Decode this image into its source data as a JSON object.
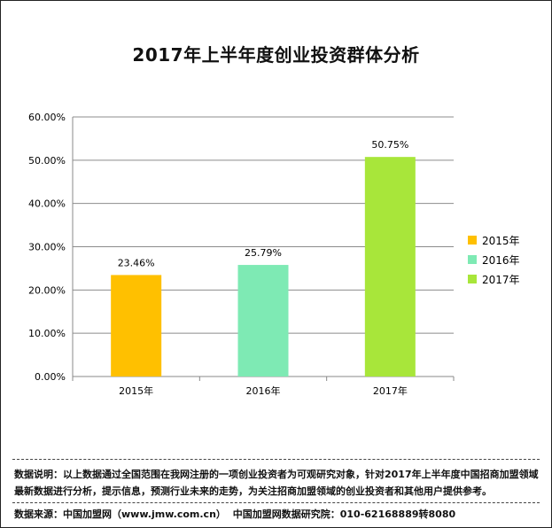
{
  "chart_data": {
    "type": "bar",
    "title": "2017年上半年度创业投资群体分析",
    "categories": [
      "2015年",
      "2016年",
      "2017年"
    ],
    "values": [
      23.46,
      25.79,
      50.75
    ],
    "value_labels": [
      "23.46%",
      "25.79%",
      "50.75%"
    ],
    "colors": [
      "#FFC000",
      "#7EEAB4",
      "#A8E63A"
    ],
    "ylim": [
      0,
      60
    ],
    "yticks": [
      0,
      10,
      20,
      30,
      40,
      50,
      60
    ],
    "ytick_labels": [
      "0.00%",
      "10.00%",
      "20.00%",
      "30.00%",
      "40.00%",
      "50.00%",
      "60.00%"
    ],
    "grid": true,
    "legend_position": "right",
    "legend": [
      "2015年",
      "2016年",
      "2017年"
    ]
  },
  "footer": {
    "note_line1": "数据说明：以上数据通过全国范围在我网注册的一项创业投资者为可观研究对象，针对2017年上半年度中国招商加盟领域",
    "note_line2": "最新数据进行分析，提示信息，预测行业未来的走势，为关注招商加盟领域的创业投资者和其他用户提供参考。",
    "source_label": "数据来源：中国加盟网（www.jmw.com.cn）",
    "institute": "中国加盟网数据研究院：010-62168889转8080"
  }
}
